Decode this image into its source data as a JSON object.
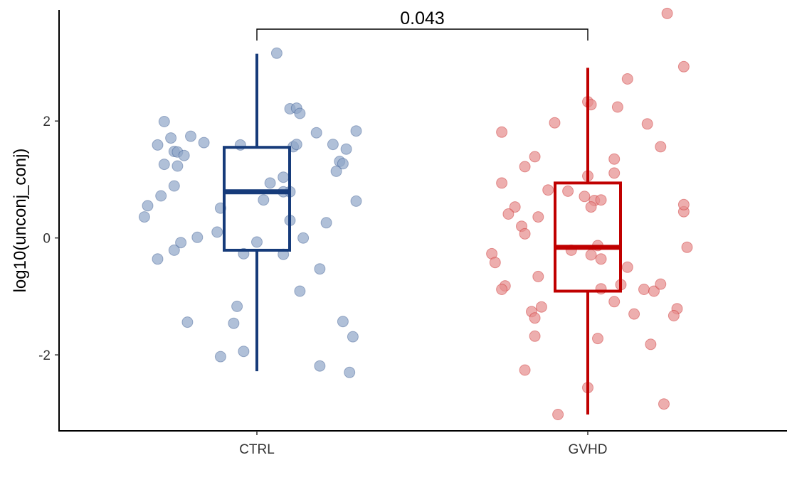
{
  "chart_data": {
    "type": "box+jitter",
    "title": "",
    "xlabel": "",
    "ylabel": "log10(unconj_conj)",
    "ylim": [
      -3.3,
      3.9
    ],
    "yticks": [
      -2,
      0,
      2
    ],
    "ytick_labels": [
      "-2",
      "0",
      "2"
    ],
    "categories": [
      "CTRL",
      "GVHD"
    ],
    "grid": false,
    "legend": "none",
    "annotation": {
      "text": "0.043",
      "between": [
        "CTRL",
        "GVHD"
      ]
    },
    "colors": {
      "CTRL": "#163b7a",
      "GVHD": "#c00000"
    },
    "point_colors": {
      "CTRL": "#8fa5c8",
      "GVHD": "#e58c8c"
    },
    "series": [
      {
        "group": "CTRL",
        "box": {
          "whisker_low": -2.28,
          "q1": -0.21,
          "median": 0.79,
          "q3": 1.55,
          "whisker_high": 3.15
        },
        "points": [
          [
            -0.28,
            1.99
          ],
          [
            -0.26,
            1.71
          ],
          [
            -0.25,
            1.48
          ],
          [
            -0.24,
            1.47
          ],
          [
            -0.2,
            1.74
          ],
          [
            -0.16,
            1.63
          ],
          [
            -0.3,
            1.59
          ],
          [
            -0.33,
            0.55
          ],
          [
            -0.34,
            0.36
          ],
          [
            -0.28,
            1.26
          ],
          [
            -0.24,
            1.23
          ],
          [
            -0.22,
            1.41
          ],
          [
            -0.29,
            0.72
          ],
          [
            -0.25,
            0.89
          ],
          [
            -0.23,
            -0.08
          ],
          [
            -0.25,
            -0.21
          ],
          [
            -0.3,
            -0.36
          ],
          [
            -0.18,
            0.01
          ],
          [
            -0.11,
            0.51
          ],
          [
            -0.12,
            0.1
          ],
          [
            -0.05,
            1.59
          ],
          [
            0.1,
            2.21
          ],
          [
            0.12,
            2.22
          ],
          [
            0.13,
            2.13
          ],
          [
            0.06,
            3.16
          ],
          [
            0.18,
            1.8
          ],
          [
            0.23,
            1.6
          ],
          [
            0.3,
            1.83
          ],
          [
            0.27,
            1.52
          ],
          [
            0.25,
            1.31
          ],
          [
            0.26,
            1.27
          ],
          [
            0.24,
            1.14
          ],
          [
            0.11,
            1.56
          ],
          [
            0.12,
            1.6
          ],
          [
            0.08,
            1.04
          ],
          [
            0.04,
            0.94
          ],
          [
            0.1,
            0.79
          ],
          [
            0.08,
            0.79
          ],
          [
            0.02,
            0.65
          ],
          [
            0.1,
            0.3
          ],
          [
            0.21,
            0.26
          ],
          [
            0.3,
            0.63
          ],
          [
            0.14,
            0.0
          ],
          [
            0.0,
            -0.07
          ],
          [
            -0.04,
            -0.27
          ],
          [
            0.08,
            -0.28
          ],
          [
            0.19,
            -0.53
          ],
          [
            0.13,
            -0.91
          ],
          [
            -0.06,
            -1.17
          ],
          [
            -0.07,
            -1.46
          ],
          [
            -0.21,
            -1.44
          ],
          [
            0.26,
            -1.43
          ],
          [
            0.29,
            -1.69
          ],
          [
            -0.11,
            -2.03
          ],
          [
            -0.04,
            -1.94
          ],
          [
            0.19,
            -2.19
          ],
          [
            0.28,
            -2.3
          ]
        ]
      },
      {
        "group": "GVHD",
        "box": {
          "whisker_low": -3.02,
          "q1": -0.91,
          "median": -0.16,
          "q3": 0.94,
          "whisker_high": 2.91
        },
        "points": [
          [
            -0.26,
            1.81
          ],
          [
            -0.1,
            1.97
          ],
          [
            -0.16,
            1.39
          ],
          [
            -0.19,
            1.22
          ],
          [
            -0.26,
            0.94
          ],
          [
            -0.12,
            0.82
          ],
          [
            -0.22,
            0.53
          ],
          [
            -0.24,
            0.41
          ],
          [
            -0.2,
            0.2
          ],
          [
            -0.19,
            0.07
          ],
          [
            -0.15,
            0.36
          ],
          [
            -0.29,
            -0.27
          ],
          [
            -0.28,
            -0.42
          ],
          [
            -0.25,
            -0.82
          ],
          [
            -0.26,
            -0.88
          ],
          [
            -0.15,
            -0.66
          ],
          [
            -0.17,
            -1.26
          ],
          [
            -0.14,
            -1.18
          ],
          [
            -0.16,
            -1.37
          ],
          [
            -0.16,
            -1.68
          ],
          [
            -0.19,
            -2.26
          ],
          [
            -0.09,
            -3.02
          ],
          [
            0.0,
            2.33
          ],
          [
            0.01,
            2.28
          ],
          [
            0.09,
            2.24
          ],
          [
            0.12,
            2.72
          ],
          [
            0.18,
            1.95
          ],
          [
            0.22,
            1.56
          ],
          [
            0.24,
            3.84
          ],
          [
            0.29,
            2.93
          ],
          [
            0.08,
            1.35
          ],
          [
            0.08,
            1.11
          ],
          [
            0.0,
            1.06
          ],
          [
            -0.06,
            0.8
          ],
          [
            -0.01,
            0.71
          ],
          [
            0.02,
            0.64
          ],
          [
            0.04,
            0.65
          ],
          [
            0.01,
            0.53
          ],
          [
            0.03,
            -0.13
          ],
          [
            -0.05,
            -0.21
          ],
          [
            0.01,
            -0.29
          ],
          [
            0.04,
            -0.36
          ],
          [
            0.12,
            -0.5
          ],
          [
            0.1,
            -0.8
          ],
          [
            0.04,
            -0.87
          ],
          [
            0.08,
            -1.09
          ],
          [
            0.14,
            -1.3
          ],
          [
            0.17,
            -0.88
          ],
          [
            0.2,
            -0.91
          ],
          [
            0.22,
            -0.79
          ],
          [
            0.19,
            -1.82
          ],
          [
            0.29,
            0.45
          ],
          [
            0.29,
            0.57
          ],
          [
            0.3,
            -0.16
          ],
          [
            0.27,
            -1.21
          ],
          [
            0.26,
            -1.33
          ],
          [
            0.23,
            -2.84
          ],
          [
            0.03,
            -1.72
          ],
          [
            0.0,
            -2.56
          ]
        ]
      }
    ]
  }
}
